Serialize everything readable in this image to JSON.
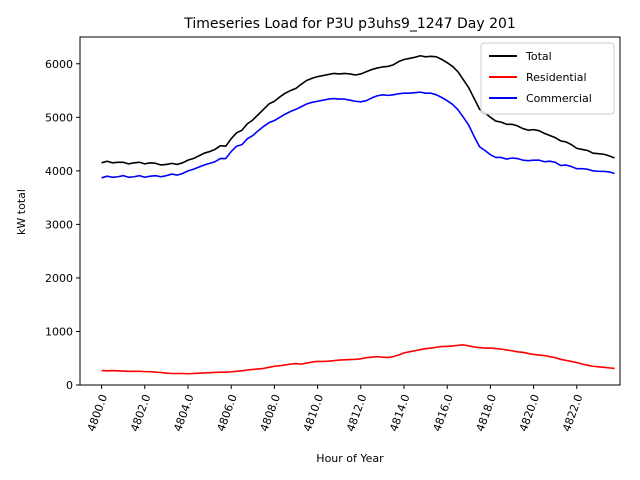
{
  "chart_data": {
    "type": "line",
    "title": "Timeseries Load for P3U p3uhs9_1247  Day 201",
    "xlabel": "Hour of Year",
    "ylabel": "kW total",
    "xlim": [
      4799.0,
      4824.0
    ],
    "ylim": [
      0,
      6500
    ],
    "xticks": [
      4800,
      4802,
      4804,
      4806,
      4808,
      4810,
      4812,
      4814,
      4816,
      4818,
      4820,
      4822
    ],
    "xtick_labels": [
      "4800.0",
      "4802.0",
      "4804.0",
      "4806.0",
      "4808.0",
      "4810.0",
      "4812.0",
      "4814.0",
      "4816.0",
      "4818.0",
      "4820.0",
      "4822.0"
    ],
    "yticks": [
      0,
      1000,
      2000,
      3000,
      4000,
      5000,
      6000
    ],
    "ytick_labels": [
      "0",
      "1000",
      "2000",
      "3000",
      "4000",
      "5000",
      "6000"
    ],
    "grid": false,
    "legend_position": "top-right",
    "x": [
      4800,
      4800.25,
      4800.5,
      4800.75,
      4801,
      4801.25,
      4801.5,
      4801.75,
      4802,
      4802.25,
      4802.5,
      4802.75,
      4803,
      4803.25,
      4803.5,
      4803.75,
      4804,
      4804.25,
      4804.5,
      4804.75,
      4805,
      4805.25,
      4805.5,
      4805.75,
      4806,
      4806.25,
      4806.5,
      4806.75,
      4807,
      4807.25,
      4807.5,
      4807.75,
      4808,
      4808.25,
      4808.5,
      4808.75,
      4809,
      4809.25,
      4809.5,
      4809.75,
      4810,
      4810.25,
      4810.5,
      4810.75,
      4811,
      4811.25,
      4811.5,
      4811.75,
      4812,
      4812.25,
      4812.5,
      4812.75,
      4813,
      4813.25,
      4813.5,
      4813.75,
      4814,
      4814.25,
      4814.5,
      4814.75,
      4815,
      4815.25,
      4815.5,
      4815.75,
      4816,
      4816.25,
      4816.5,
      4816.75,
      4817,
      4817.25,
      4817.5,
      4817.75,
      4818,
      4818.25,
      4818.5,
      4818.75,
      4819,
      4819.25,
      4819.5,
      4819.75,
      4820,
      4820.25,
      4820.5,
      4820.75,
      4821,
      4821.25,
      4821.5,
      4821.75,
      4822,
      4822.25,
      4822.5,
      4822.75,
      4823,
      4823.25,
      4823.5,
      4823.75
    ],
    "series": [
      {
        "name": "Total",
        "color": "#000000",
        "values": [
          4150,
          4180,
          4150,
          4160,
          4160,
          4130,
          4150,
          4160,
          4130,
          4150,
          4140,
          4110,
          4120,
          4140,
          4120,
          4150,
          4200,
          4230,
          4280,
          4330,
          4360,
          4400,
          4470,
          4460,
          4600,
          4710,
          4760,
          4880,
          4950,
          5050,
          5150,
          5250,
          5300,
          5380,
          5450,
          5500,
          5540,
          5620,
          5690,
          5730,
          5760,
          5780,
          5800,
          5820,
          5810,
          5820,
          5810,
          5790,
          5810,
          5850,
          5890,
          5920,
          5940,
          5950,
          5980,
          6040,
          6080,
          6100,
          6120,
          6150,
          6130,
          6140,
          6130,
          6080,
          6020,
          5950,
          5850,
          5700,
          5550,
          5350,
          5150,
          5080,
          5000,
          4930,
          4910,
          4870,
          4870,
          4840,
          4790,
          4760,
          4770,
          4750,
          4700,
          4660,
          4620,
          4560,
          4540,
          4490,
          4420,
          4400,
          4380,
          4330,
          4320,
          4310,
          4280,
          4240
        ]
      },
      {
        "name": "Residential",
        "color": "#ff0000",
        "values": [
          270,
          265,
          270,
          265,
          260,
          255,
          255,
          255,
          250,
          250,
          240,
          235,
          220,
          215,
          215,
          215,
          210,
          215,
          220,
          225,
          230,
          235,
          240,
          240,
          245,
          255,
          265,
          280,
          290,
          300,
          310,
          330,
          350,
          360,
          375,
          390,
          400,
          390,
          410,
          430,
          440,
          440,
          445,
          455,
          465,
          470,
          475,
          480,
          490,
          510,
          520,
          530,
          520,
          515,
          530,
          560,
          600,
          620,
          640,
          660,
          680,
          690,
          705,
          720,
          720,
          730,
          740,
          750,
          730,
          710,
          700,
          690,
          690,
          680,
          670,
          655,
          640,
          620,
          610,
          590,
          570,
          560,
          550,
          530,
          510,
          480,
          460,
          440,
          420,
          390,
          370,
          350,
          340,
          330,
          320,
          310
        ]
      },
      {
        "name": "Commercial",
        "color": "#0000ff",
        "values": [
          3870,
          3900,
          3880,
          3890,
          3910,
          3880,
          3890,
          3910,
          3880,
          3900,
          3910,
          3890,
          3910,
          3940,
          3920,
          3950,
          4000,
          4030,
          4070,
          4110,
          4140,
          4170,
          4230,
          4230,
          4360,
          4460,
          4490,
          4600,
          4660,
          4750,
          4830,
          4900,
          4940,
          5000,
          5060,
          5110,
          5150,
          5200,
          5250,
          5280,
          5300,
          5320,
          5340,
          5350,
          5340,
          5340,
          5320,
          5300,
          5290,
          5310,
          5360,
          5400,
          5420,
          5410,
          5420,
          5440,
          5450,
          5450,
          5460,
          5470,
          5450,
          5450,
          5420,
          5370,
          5310,
          5240,
          5140,
          5000,
          4850,
          4640,
          4450,
          4380,
          4300,
          4250,
          4250,
          4220,
          4240,
          4230,
          4200,
          4190,
          4200,
          4200,
          4170,
          4180,
          4160,
          4100,
          4110,
          4080,
          4040,
          4040,
          4030,
          4000,
          3990,
          3990,
          3980,
          3950
        ]
      }
    ]
  }
}
